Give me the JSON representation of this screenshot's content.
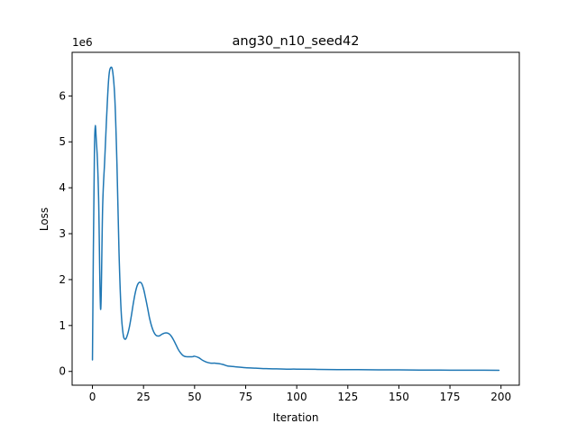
{
  "chart_data": {
    "type": "line",
    "title": "ang30_n10_seed42",
    "xlabel": "Iteration",
    "ylabel": "Loss",
    "y_offset_label": "1e6",
    "xlim": [
      -9.95,
      208.95
    ],
    "ylim": [
      -0.3,
      6.95
    ],
    "x_ticks": [
      0,
      25,
      50,
      75,
      100,
      125,
      150,
      175,
      200
    ],
    "y_ticks": [
      0,
      1,
      2,
      3,
      4,
      5,
      6
    ],
    "grid": false,
    "series": [
      {
        "color": "#1f77b4",
        "x": [
          0,
          1,
          2,
          3,
          4,
          5,
          6,
          7,
          8,
          9,
          10,
          11,
          12,
          13,
          14,
          15,
          16,
          17,
          18,
          19,
          20,
          21,
          22,
          23,
          24,
          25,
          26,
          27,
          28,
          29,
          30,
          31,
          32,
          33,
          34,
          35,
          36,
          37,
          38,
          39,
          40,
          41,
          42,
          43,
          44,
          45,
          46,
          47,
          48,
          49,
          50,
          52,
          54,
          56,
          58,
          60,
          62,
          64,
          66,
          68,
          70,
          75,
          80,
          85,
          90,
          95,
          100,
          110,
          120,
          130,
          140,
          150,
          160,
          170,
          180,
          190,
          199
        ],
        "y": [
          0.25,
          4.92,
          4.95,
          3.8,
          1.35,
          3.6,
          4.6,
          5.6,
          6.4,
          6.62,
          6.5,
          5.9,
          4.5,
          2.6,
          1.35,
          0.82,
          0.7,
          0.78,
          0.95,
          1.2,
          1.48,
          1.72,
          1.88,
          1.94,
          1.92,
          1.8,
          1.6,
          1.38,
          1.15,
          0.98,
          0.86,
          0.79,
          0.77,
          0.78,
          0.81,
          0.83,
          0.84,
          0.83,
          0.8,
          0.74,
          0.66,
          0.57,
          0.48,
          0.41,
          0.36,
          0.33,
          0.32,
          0.32,
          0.32,
          0.32,
          0.33,
          0.3,
          0.24,
          0.2,
          0.18,
          0.18,
          0.17,
          0.15,
          0.12,
          0.11,
          0.1,
          0.08,
          0.07,
          0.06,
          0.055,
          0.05,
          0.05,
          0.045,
          0.04,
          0.038,
          0.035,
          0.033,
          0.03,
          0.028,
          0.027,
          0.026,
          0.025
        ]
      }
    ]
  }
}
